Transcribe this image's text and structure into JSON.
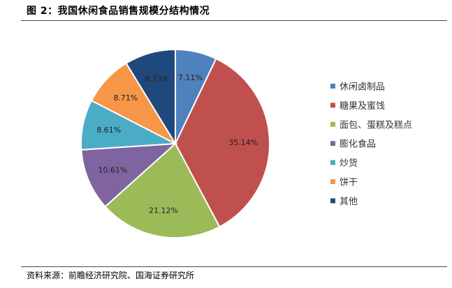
{
  "figure": {
    "title": "图 2：我国休闲食品销售规模分结构情况",
    "source": "资料来源：前瞻经济研究院、国海证券研究所"
  },
  "chart_data": {
    "type": "pie",
    "title": "",
    "legend_position": "right",
    "slices": [
      {
        "label": "休闲卤制品",
        "value": 7.11,
        "display": "7.11%",
        "color": "#4F81BD"
      },
      {
        "label": "糖果及蜜饯",
        "value": 35.14,
        "display": "35.14%",
        "color": "#C0504D"
      },
      {
        "label": "面包、蛋糕及糕点",
        "value": 21.12,
        "display": "21.12%",
        "color": "#9BBB59"
      },
      {
        "label": "膨化食品",
        "value": 10.61,
        "display": "10.61%",
        "color": "#8064A2"
      },
      {
        "label": "炒货",
        "value": 8.61,
        "display": "8.61%",
        "color": "#4BACC6"
      },
      {
        "label": "饼干",
        "value": 8.71,
        "display": "8.71%",
        "color": "#F79646"
      },
      {
        "label": "其他",
        "value": 8.73,
        "display": "8.73%",
        "color": "#1F497D"
      }
    ]
  }
}
